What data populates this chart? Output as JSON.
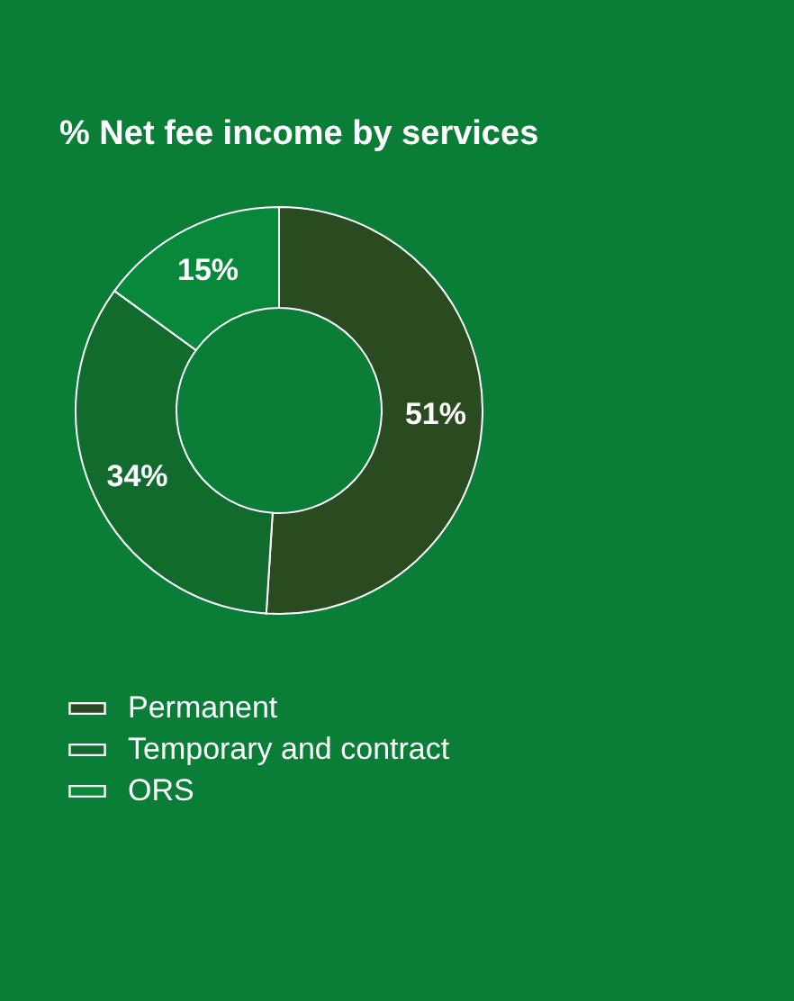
{
  "chart_data": {
    "type": "donut",
    "title": "% Net fee income by services",
    "categories": [
      "Permanent",
      "Temporary and contract",
      "ORS"
    ],
    "values": [
      51,
      34,
      15
    ],
    "colors": [
      "#2a4a1f",
      "#106b2d",
      "#07883a"
    ],
    "value_labels": [
      "51%",
      "34%",
      "15%"
    ],
    "legend": "bottom left"
  }
}
